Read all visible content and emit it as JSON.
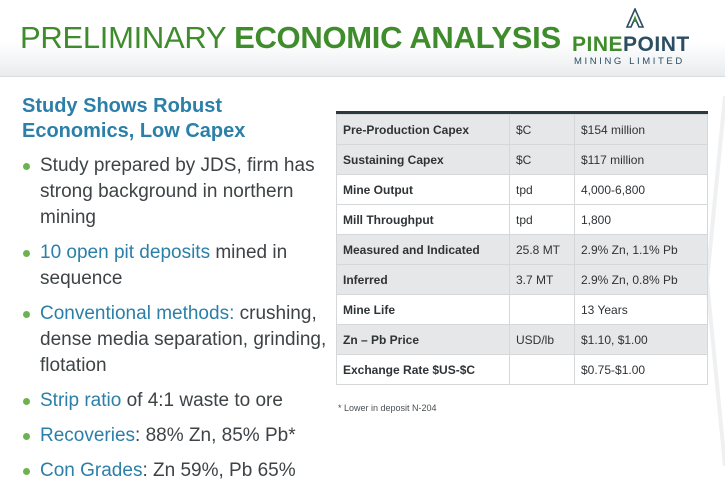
{
  "header": {
    "title_light": "PRELIMINARY",
    "title_bold": "ECONOMIC ANALYSIS",
    "logo_pine": "PINE",
    "logo_point": "POINT",
    "logo_subtitle": "MINING LIMITED"
  },
  "subtitle": "Study Shows Robust Economics, Low Capex",
  "bullets": [
    {
      "highlight": "",
      "text": "Study prepared by JDS, firm has strong background in northern mining"
    },
    {
      "highlight": "10 open pit deposits",
      "text": " mined in sequence"
    },
    {
      "highlight": "Conventional methods:",
      "text": " crushing, dense media separation, grinding, flotation"
    },
    {
      "highlight": "Strip ratio",
      "text": " of 4:1 waste to ore"
    },
    {
      "highlight": "Recoveries",
      "text": ": 88% Zn, 85% Pb*"
    },
    {
      "highlight": "Con Grades",
      "text": ": Zn 59%, Pb 65%"
    }
  ],
  "table": {
    "rows": [
      {
        "label": "Pre-Production Capex",
        "unit": "$C",
        "value": "$154 million"
      },
      {
        "label": "Sustaining Capex",
        "unit": "$C",
        "value": "$117 million"
      },
      {
        "label": "Mine Output",
        "unit": "tpd",
        "value": "4,000-6,800"
      },
      {
        "label": "Mill Throughput",
        "unit": "tpd",
        "value": "1,800"
      },
      {
        "label": "Measured and Indicated",
        "unit": "25.8 MT",
        "value": "2.9% Zn, 1.1% Pb"
      },
      {
        "label": "Inferred",
        "unit": "3.7 MT",
        "value": "2.9% Zn, 0.8% Pb"
      },
      {
        "label": "Mine Life",
        "unit": "",
        "value": "13 Years"
      },
      {
        "label": "Zn – Pb Price",
        "unit": "USD/lb",
        "value": "$1.10, $1.00"
      },
      {
        "label": "Exchange Rate $US-$C",
        "unit": "",
        "value": "$0.75-$1.00"
      }
    ]
  },
  "footnote": "* Lower in deposit N-204",
  "colors": {
    "brand_green": "#3f8c2c",
    "brand_blue": "#2b7fa8",
    "logo_navy": "#2b4e63",
    "bullet_dot": "#6eb24e",
    "table_shade": "#e6e7e8"
  }
}
